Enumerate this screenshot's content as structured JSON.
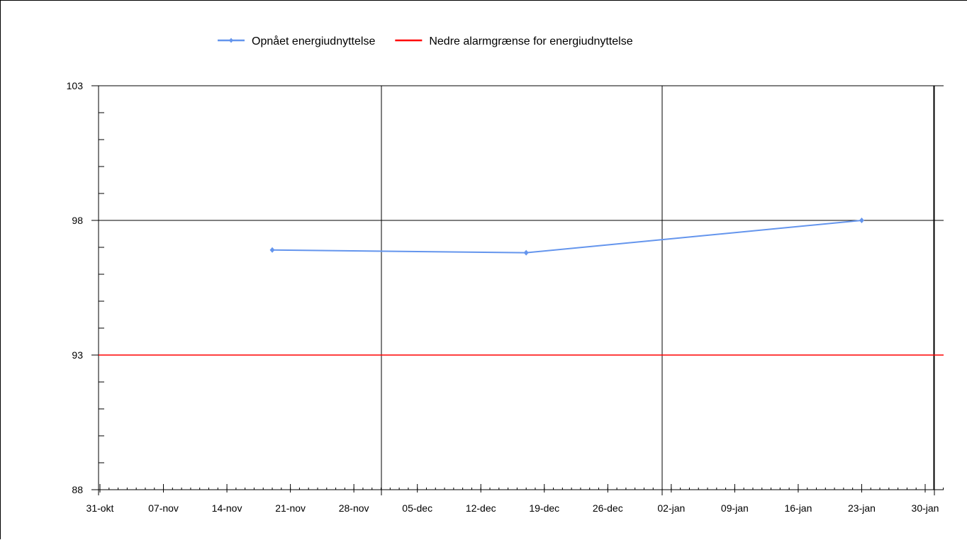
{
  "chart_data": {
    "type": "line",
    "title": "",
    "xlabel": "",
    "ylabel": "",
    "x_axis": {
      "type": "date",
      "min": "2021-10-31",
      "max": "2022-01-30",
      "tick_labels": [
        "31-okt",
        "07-nov",
        "14-nov",
        "21-nov",
        "28-nov",
        "05-dec",
        "12-dec",
        "19-dec",
        "26-dec",
        "02-jan",
        "09-jan",
        "16-jan",
        "23-jan",
        "30-jan"
      ]
    },
    "y_axis": {
      "min": 88,
      "max": 103,
      "major_ticks": [
        88,
        93,
        98,
        103
      ],
      "minor_step": 1,
      "major_gridlines_horizontal": [
        98,
        93
      ],
      "tick_labels": [
        "88",
        "93",
        "98",
        "103"
      ]
    },
    "vertical_gridlines_x": [
      "2021-12-01",
      "2022-01-01",
      "2022-01-31"
    ],
    "legend": {
      "position": "top-center"
    },
    "series": [
      {
        "name": "Opnået energiudnyttelse",
        "color": "#6495ed",
        "marker": "diamond",
        "points": [
          {
            "x": "2021-11-19",
            "y": 96.9
          },
          {
            "x": "2021-12-17",
            "y": 96.8
          },
          {
            "x": "2022-01-23",
            "y": 98.0
          }
        ]
      },
      {
        "name": "Nedre alarmgrænse for energiudnyttelse",
        "color": "#ff0000",
        "marker": "none",
        "constant_y": 93
      }
    ]
  }
}
